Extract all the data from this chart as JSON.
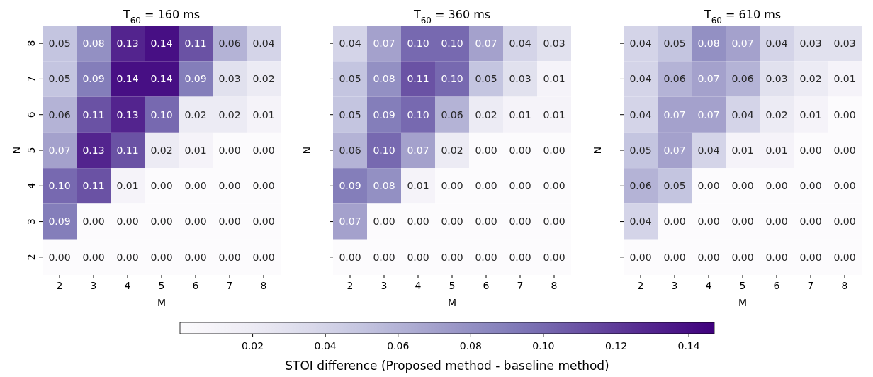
{
  "chart_data": [
    {
      "type": "heatmap",
      "title": "T$_{60}$ = 160 ms",
      "xlabel": "M",
      "ylabel": "N",
      "categories": [
        "2",
        "3",
        "4",
        "5",
        "6",
        "7",
        "8"
      ],
      "y_categories": [
        "8",
        "7",
        "6",
        "5",
        "4",
        "3",
        "2"
      ],
      "cells": [
        [
          0.05,
          0.08,
          0.13,
          0.14,
          0.11,
          0.06,
          0.04
        ],
        [
          0.05,
          0.09,
          0.14,
          0.14,
          0.09,
          0.03,
          0.02
        ],
        [
          0.06,
          0.11,
          0.13,
          0.1,
          0.02,
          0.02,
          0.01
        ],
        [
          0.07,
          0.13,
          0.11,
          0.02,
          0.01,
          0.0,
          0.0
        ],
        [
          0.1,
          0.11,
          0.01,
          0.0,
          0.0,
          0.0,
          0.0
        ],
        [
          0.09,
          0.0,
          0.0,
          0.0,
          0.0,
          0.0,
          0.0
        ],
        [
          0.0,
          0.0,
          0.0,
          0.0,
          0.0,
          0.0,
          0.0
        ]
      ],
      "cell_labels": [
        [
          "0.05",
          "0.08",
          "0.13",
          "0.14",
          "0.11",
          "0.06",
          "0.04"
        ],
        [
          "0.05",
          "0.09",
          "0.14",
          "0.14",
          "0.09",
          "0.03",
          "0.02"
        ],
        [
          "0.06",
          "0.11",
          "0.13",
          "0.10",
          "0.02",
          "0.02",
          "0.01"
        ],
        [
          "0.07",
          "0.13",
          "0.11",
          "0.02",
          "0.01",
          "0.00",
          "0.00"
        ],
        [
          "0.10",
          "0.11",
          "0.01",
          "0.00",
          "0.00",
          "0.00",
          "0.00"
        ],
        [
          "0.09",
          "0.00",
          "0.00",
          "0.00",
          "0.00",
          "0.00",
          "0.00"
        ],
        [
          "0.00",
          "0.00",
          "0.00",
          "0.00",
          "0.00",
          "0.00",
          "0.00"
        ]
      ],
      "clim": [
        0,
        0.147
      ],
      "cticks": [
        {
          "value": 0.02,
          "label": "0.02"
        },
        {
          "value": 0.04,
          "label": "0.04"
        },
        {
          "value": 0.06,
          "label": "0.06"
        },
        {
          "value": 0.08,
          "label": "0.08"
        },
        {
          "value": 0.1,
          "label": "0.10"
        },
        {
          "value": 0.12,
          "label": "0.12"
        },
        {
          "value": 0.14,
          "label": "0.14"
        }
      ],
      "clabel": "STOI difference (Proposed method - baseline method)"
    },
    {
      "type": "heatmap",
      "title": "T$_{60}$ = 360 ms",
      "xlabel": "M",
      "ylabel": "N",
      "categories": [
        "2",
        "3",
        "4",
        "5",
        "6",
        "7",
        "8"
      ],
      "y_categories": [
        "8",
        "7",
        "6",
        "5",
        "4",
        "3",
        "2"
      ],
      "cells": [
        [
          0.04,
          0.07,
          0.1,
          0.1,
          0.07,
          0.04,
          0.03
        ],
        [
          0.05,
          0.08,
          0.11,
          0.1,
          0.05,
          0.03,
          0.01
        ],
        [
          0.05,
          0.09,
          0.1,
          0.06,
          0.02,
          0.01,
          0.01
        ],
        [
          0.06,
          0.1,
          0.07,
          0.02,
          0.0,
          0.0,
          0.0
        ],
        [
          0.09,
          0.08,
          0.01,
          0.0,
          0.0,
          0.0,
          0.0
        ],
        [
          0.07,
          0.0,
          0.0,
          0.0,
          0.0,
          0.0,
          0.0
        ],
        [
          0.0,
          0.0,
          0.0,
          0.0,
          0.0,
          0.0,
          0.0
        ]
      ],
      "cell_labels": [
        [
          "0.04",
          "0.07",
          "0.10",
          "0.10",
          "0.07",
          "0.04",
          "0.03"
        ],
        [
          "0.05",
          "0.08",
          "0.11",
          "0.10",
          "0.05",
          "0.03",
          "0.01"
        ],
        [
          "0.05",
          "0.09",
          "0.10",
          "0.06",
          "0.02",
          "0.01",
          "0.01"
        ],
        [
          "0.06",
          "0.10",
          "0.07",
          "0.02",
          "0.00",
          "0.00",
          "0.00"
        ],
        [
          "0.09",
          "0.08",
          "0.01",
          "0.00",
          "0.00",
          "0.00",
          "0.00"
        ],
        [
          "0.07",
          "0.00",
          "0.00",
          "0.00",
          "0.00",
          "0.00",
          "0.00"
        ],
        [
          "0.00",
          "0.00",
          "0.00",
          "0.00",
          "0.00",
          "0.00",
          "0.00"
        ]
      ],
      "tick_labels": "x"
    },
    {
      "type": "heatmap",
      "title": "T$_{60}$ = 610 ms",
      "xlabel": "M",
      "ylabel": "N",
      "categories": [
        "2",
        "3",
        "4",
        "5",
        "6",
        "7",
        "8"
      ],
      "y_categories": [
        "8",
        "7",
        "6",
        "5",
        "4",
        "3",
        "2"
      ],
      "cells": [
        [
          0.04,
          0.05,
          0.08,
          0.07,
          0.04,
          0.03,
          0.03
        ],
        [
          0.04,
          0.06,
          0.07,
          0.06,
          0.03,
          0.02,
          0.01
        ],
        [
          0.04,
          0.07,
          0.07,
          0.04,
          0.02,
          0.01,
          0.0
        ],
        [
          0.05,
          0.07,
          0.04,
          0.01,
          0.01,
          0.0,
          0.0
        ],
        [
          0.06,
          0.05,
          0.0,
          0.0,
          0.0,
          0.0,
          0.0
        ],
        [
          0.04,
          0.0,
          0.0,
          0.0,
          0.0,
          0.0,
          0.0
        ],
        [
          0.0,
          0.0,
          0.0,
          0.0,
          0.0,
          0.0,
          0.0
        ]
      ],
      "cell_labels": [
        [
          "0.04",
          "0.05",
          "0.08",
          "0.07",
          "0.04",
          "0.03",
          "0.03"
        ],
        [
          "0.04",
          "0.06",
          "0.07",
          "0.06",
          "0.03",
          "0.02",
          "0.01"
        ],
        [
          "0.04",
          "0.07",
          "0.07",
          "0.04",
          "0.02",
          "0.01",
          "0.00"
        ],
        [
          "0.05",
          "0.07",
          "0.04",
          "0.01",
          "0.01",
          "0.00",
          "0.00"
        ],
        [
          "0.06",
          "0.05",
          "0.00",
          "0.00",
          "0.00",
          "0.00",
          "0.00"
        ],
        [
          "0.04",
          "0.00",
          "0.00",
          "0.00",
          "0.00",
          "0.00",
          "0.00"
        ],
        [
          "0.00",
          "0.00",
          "0.00",
          "0.00",
          "0.00",
          "0.00",
          "0.00"
        ]
      ],
      "tick_labels": "x"
    }
  ]
}
